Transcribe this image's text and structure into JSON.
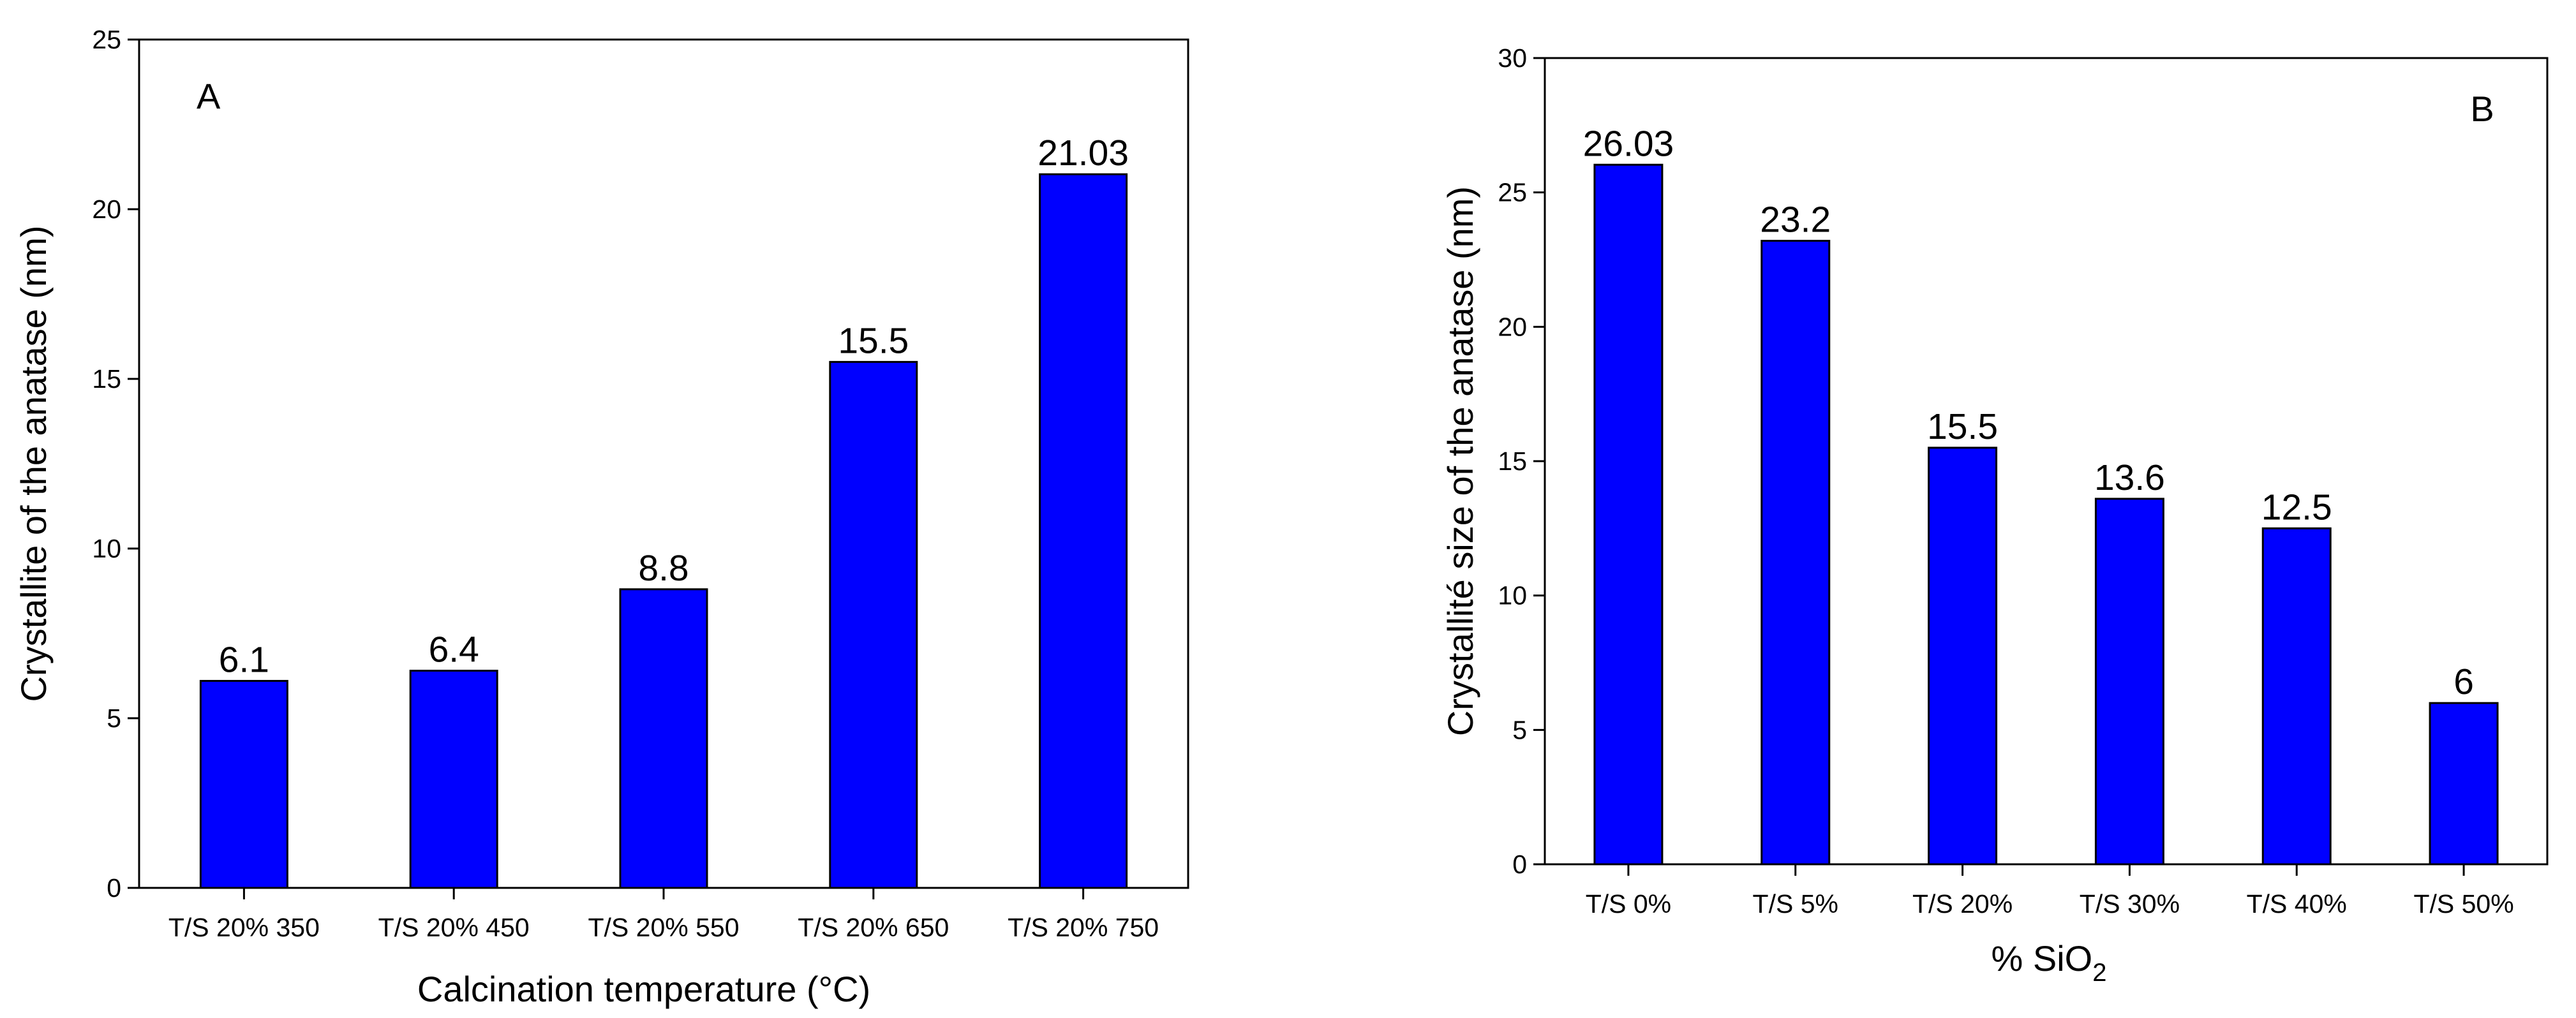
{
  "chart_data": [
    {
      "type": "bar",
      "panel_label": "A",
      "categories": [
        "T/S 20% 350",
        "T/S 20% 450",
        "T/S 20% 550",
        "T/S 20% 650",
        "T/S 20% 750"
      ],
      "values": [
        6.1,
        6.4,
        8.8,
        15.5,
        21.03
      ],
      "data_labels": [
        "6.1",
        "6.4",
        "8.8",
        "15.5",
        "21.03"
      ],
      "xlabel": "Calcination temperature (°C)",
      "ylabel": "Crystallite of the anatase (nm)",
      "ylim": [
        0,
        25
      ],
      "yticks": [
        0,
        5,
        10,
        15,
        20,
        25
      ],
      "bar_color": "#0000FF",
      "grid": false
    },
    {
      "type": "bar",
      "panel_label": "B",
      "categories": [
        "T/S 0%",
        "T/S 5%",
        "T/S 20%",
        "T/S 30%",
        "T/S 40%",
        "T/S 50%"
      ],
      "values": [
        26.03,
        23.2,
        15.5,
        13.6,
        12.5,
        6
      ],
      "data_labels": [
        "26.03",
        "23.2",
        "15.5",
        "13.6",
        "12.5",
        "6"
      ],
      "xlabel": {
        "prefix": "% SiO",
        "subscript": "2"
      },
      "ylabel": "Crystallité size of the anatase (nm)",
      "ylim": [
        0,
        30
      ],
      "yticks": [
        0,
        5,
        10,
        15,
        20,
        25,
        30
      ],
      "bar_color": "#0000FF",
      "grid": false
    }
  ]
}
